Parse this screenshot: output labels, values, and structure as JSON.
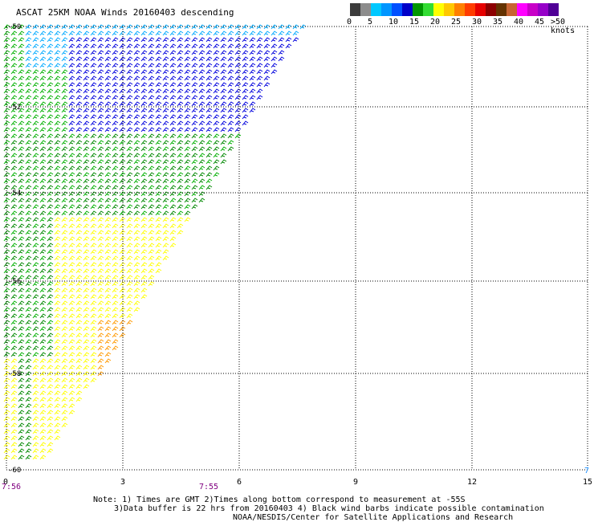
{
  "title": "ASCAT 25KM NOAA Winds 20160403 descending",
  "colorbar": {
    "colors": [
      "#3c3c3c",
      "#8c8c8c",
      "#00c8ff",
      "#0096ff",
      "#0050ff",
      "#0000c8",
      "#009600",
      "#32dc32",
      "#ffff00",
      "#ffc800",
      "#ff8000",
      "#ff3c00",
      "#e60000",
      "#8c0000",
      "#643200",
      "#c86432",
      "#ff00ff",
      "#c800c8",
      "#9600c8",
      "#500096"
    ],
    "labels": [
      "0",
      "5",
      "10",
      "15",
      "20",
      "25",
      "30",
      "35",
      "40",
      "45",
      ">50 knots"
    ]
  },
  "barb_colors": {
    "lt10": "#00aaff",
    "lt15": "#0000dd",
    "lt20": "#00b000",
    "lt25": "#008800",
    "lt30": "#ffff00",
    "lt35": "#ff9900"
  },
  "lat_labels": [
    "-50",
    "-52",
    "-54",
    "-56",
    "-58",
    "-60"
  ],
  "lon_labels": [
    "0",
    "3",
    "6",
    "9",
    "12",
    "15"
  ],
  "time_labels": [
    "7:56",
    "7:55",
    "7"
  ],
  "notes": {
    "line1": "Note: 1) Times are GMT 2)Times along bottom correspond to measurement at -55S",
    "line2": "3)Data buffer is 22 hrs from 20160403 4) Black wind barbs indicate possible contamination",
    "line3": "NOAA/NESDIS/Center for Satellite Applications and Research"
  }
}
